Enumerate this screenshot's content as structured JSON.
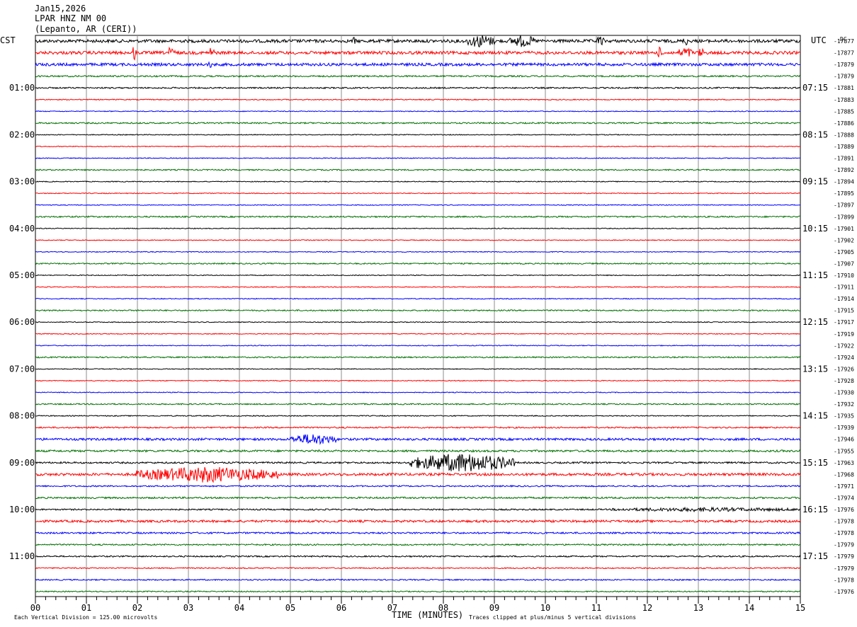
{
  "header": {
    "date": "Jan15,2026",
    "station": "LPAR HNZ NM 00",
    "location": "(Lepanto, AR (CERI))"
  },
  "left_zone_label": "CST",
  "right_zone_label": "UTC",
  "dc_label": "DC",
  "footer": {
    "xlabel": "TIME (MINUTES)",
    "scale_note": "Each Vertical Division =  125.00 microvolts",
    "clip_note": "Traces clipped at plus/minus 5 vertical divisions"
  },
  "chart_data": {
    "type": "line",
    "title": "",
    "xlabel": "TIME (MINUTES)",
    "ylabel": "",
    "xlim": [
      0,
      15
    ],
    "x_ticks": [
      "00",
      "01",
      "02",
      "03",
      "04",
      "05",
      "06",
      "07",
      "08",
      "09",
      "10",
      "11",
      "12",
      "13",
      "14",
      "15"
    ],
    "trace_colors": [
      "#000000",
      "#ff0000",
      "#0000ff",
      "#007000"
    ],
    "left_hour_labels": [
      "01:00",
      "02:00",
      "03:00",
      "04:00",
      "05:00",
      "06:00",
      "07:00",
      "08:00",
      "09:00",
      "10:00",
      "11:00"
    ],
    "right_hour_labels": [
      "07:15",
      "08:15",
      "09:15",
      "10:15",
      "11:15",
      "12:15",
      "13:15",
      "14:15",
      "15:15",
      "16:15",
      "17:15"
    ],
    "dc_offsets": [
      "-17877",
      "-17877",
      "-17879",
      "-17879",
      "-17881",
      "-17883",
      "-17885",
      "-17886",
      "-17888",
      "-17889",
      "-17891",
      "-17892",
      "-17894",
      "-17895",
      "-17897",
      "-17899",
      "-17901",
      "-17902",
      "-17905",
      "-17907",
      "-17910",
      "-17911",
      "-17914",
      "-17915",
      "-17917",
      "-17919",
      "-17922",
      "-17924",
      "-17926",
      "-17928",
      "-17930",
      "-17932",
      "-17935",
      "-17939",
      "-17946",
      "-17955",
      "-17963",
      "-17968",
      "-17971",
      "-17974",
      "-17976",
      "-17978",
      "-17978",
      "-17979",
      "-17979",
      "-17979",
      "-17978",
      "-17976"
    ],
    "trace_noise_level": [
      2.2,
      2.2,
      2.0,
      1.1,
      1.0,
      0.7,
      0.6,
      1.0,
      0.6,
      0.6,
      0.6,
      0.9,
      0.6,
      0.6,
      0.6,
      1.0,
      0.6,
      0.6,
      0.6,
      0.9,
      0.6,
      0.6,
      0.6,
      0.9,
      0.6,
      0.6,
      0.6,
      0.9,
      0.6,
      0.6,
      0.6,
      0.9,
      0.7,
      1.0,
      1.6,
      1.4,
      1.2,
      1.8,
      1.0,
      1.2,
      1.0,
      1.6,
      1.2,
      1.0,
      1.0,
      0.8,
      0.9,
      0.8
    ],
    "events": [
      {
        "trace": 0,
        "start_min": 8.45,
        "end_min": 9.0,
        "amplitude": 8
      },
      {
        "trace": 0,
        "start_min": 9.3,
        "end_min": 9.8,
        "amplitude": 7
      },
      {
        "trace": 0,
        "start_min": 11.0,
        "end_min": 11.15,
        "amplitude": 6
      },
      {
        "trace": 0,
        "start_min": 6.22,
        "end_min": 6.28,
        "amplitude": 5
      },
      {
        "trace": 0,
        "start_min": 12.7,
        "end_min": 12.8,
        "amplitude": 5
      },
      {
        "trace": 1,
        "start_min": 1.9,
        "end_min": 1.98,
        "amplitude": 10
      },
      {
        "trace": 1,
        "start_min": 2.55,
        "end_min": 2.75,
        "amplitude": 6
      },
      {
        "trace": 1,
        "start_min": 3.4,
        "end_min": 3.5,
        "amplitude": 8
      },
      {
        "trace": 1,
        "start_min": 12.2,
        "end_min": 12.3,
        "amplitude": 7
      },
      {
        "trace": 1,
        "start_min": 12.6,
        "end_min": 12.9,
        "amplitude": 6
      },
      {
        "trace": 1,
        "start_min": 13.0,
        "end_min": 13.1,
        "amplitude": 6
      },
      {
        "trace": 2,
        "start_min": 3.4,
        "end_min": 3.45,
        "amplitude": 5
      },
      {
        "trace": 34,
        "start_min": 5.0,
        "end_min": 5.9,
        "amplitude": 7
      },
      {
        "trace": 36,
        "start_min": 7.3,
        "end_min": 9.4,
        "amplitude": 14
      },
      {
        "trace": 37,
        "start_min": 1.95,
        "end_min": 4.8,
        "amplitude": 10
      },
      {
        "trace": 40,
        "start_min": 11.3,
        "end_min": 15.0,
        "amplitude": 2
      }
    ]
  }
}
